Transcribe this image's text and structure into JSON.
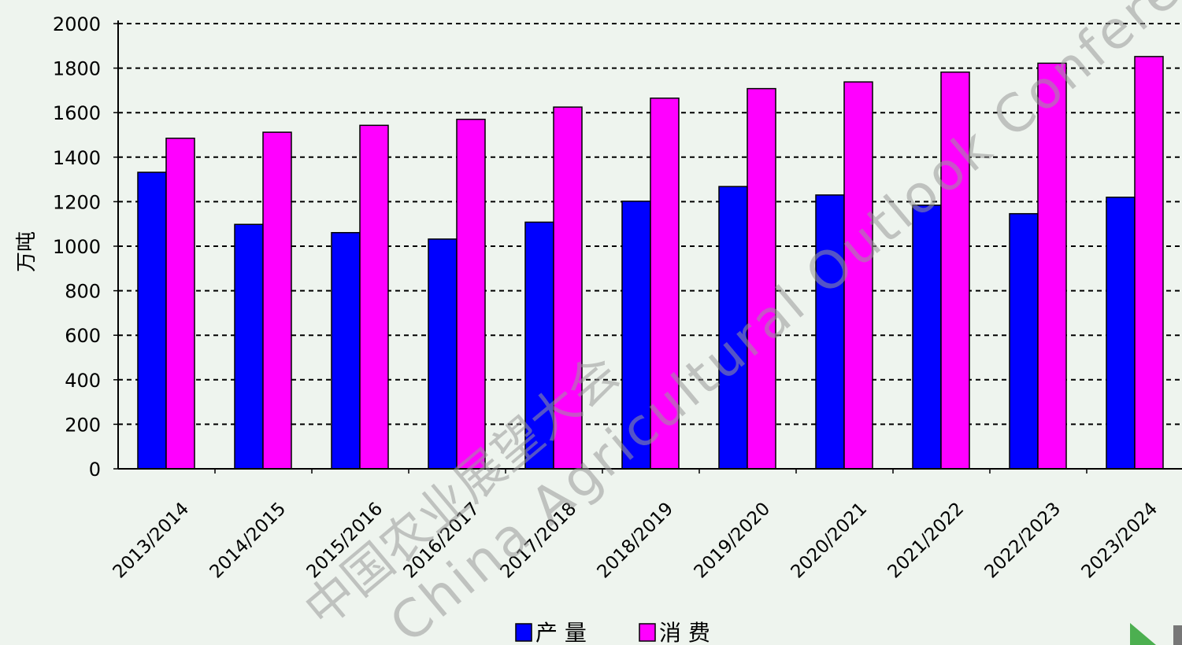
{
  "chart_data": {
    "type": "bar",
    "title": "",
    "xlabel": "",
    "ylabel": "万吨",
    "ylim": [
      0,
      2000
    ],
    "yticks": [
      0,
      200,
      400,
      600,
      800,
      1000,
      1200,
      1400,
      1600,
      1800,
      2000
    ],
    "grid": true,
    "legend_position": "bottom",
    "categories": [
      "2013/2014",
      "2014/2015",
      "2015/2016",
      "2016/2017",
      "2017/2018",
      "2018/2019",
      "2019/2020",
      "2020/2021",
      "2021/2022",
      "2022/2023",
      "2023/2024"
    ],
    "series": [
      {
        "name": "产 量",
        "color": "#0000ff",
        "values": [
          1332,
          1098,
          1061,
          1032,
          1108,
          1202,
          1268,
          1230,
          1184,
          1146,
          1220
        ]
      },
      {
        "name": "消 费",
        "color": "#ff00ff",
        "values": [
          1485,
          1512,
          1543,
          1570,
          1625,
          1665,
          1708,
          1738,
          1782,
          1822,
          1852
        ]
      }
    ]
  },
  "watermark": {
    "line1": "中国农业展望大会",
    "line2": "China Agricultural Outlook Conference"
  },
  "colors": {
    "background": "#eef4ee",
    "axis": "#000000"
  }
}
